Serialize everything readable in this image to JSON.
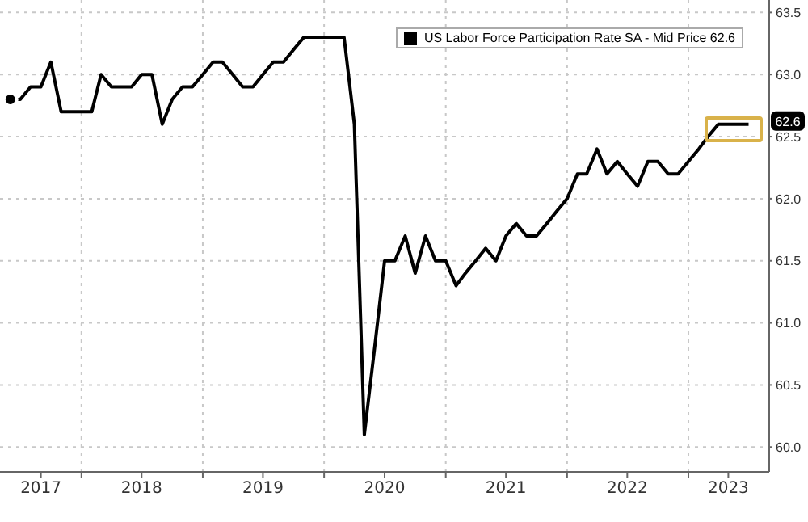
{
  "chart_data": {
    "type": "line",
    "x": [
      "2017-06",
      "2017-07",
      "2017-08",
      "2017-09",
      "2017-10",
      "2017-11",
      "2017-12",
      "2018-01",
      "2018-02",
      "2018-03",
      "2018-04",
      "2018-05",
      "2018-06",
      "2018-07",
      "2018-08",
      "2018-09",
      "2018-10",
      "2018-11",
      "2018-12",
      "2019-01",
      "2019-02",
      "2019-03",
      "2019-04",
      "2019-05",
      "2019-06",
      "2019-07",
      "2019-08",
      "2019-09",
      "2019-10",
      "2019-11",
      "2019-12",
      "2020-01",
      "2020-02",
      "2020-03",
      "2020-04",
      "2020-05",
      "2020-06",
      "2020-07",
      "2020-08",
      "2020-09",
      "2020-10",
      "2020-11",
      "2020-12",
      "2021-01",
      "2021-02",
      "2021-03",
      "2021-04",
      "2021-05",
      "2021-06",
      "2021-07",
      "2021-08",
      "2021-09",
      "2021-10",
      "2021-11",
      "2021-12",
      "2022-01",
      "2022-02",
      "2022-03",
      "2022-04",
      "2022-05",
      "2022-06",
      "2022-07",
      "2022-08",
      "2022-09",
      "2022-10",
      "2022-11",
      "2022-12",
      "2023-01",
      "2023-02",
      "2023-03",
      "2023-04",
      "2023-05",
      "2023-06",
      "2023-07"
    ],
    "series": [
      {
        "name": "US Labor Force Participation Rate SA - Mid Price 62.6",
        "color": "#000000",
        "values": [
          62.8,
          62.8,
          62.9,
          62.9,
          63.1,
          62.7,
          62.7,
          62.7,
          62.7,
          63.0,
          62.9,
          62.9,
          62.9,
          63.0,
          63.0,
          62.6,
          62.8,
          62.9,
          62.9,
          63.0,
          63.1,
          63.1,
          63.0,
          62.9,
          62.9,
          63.0,
          63.1,
          63.1,
          63.2,
          63.3,
          63.3,
          63.3,
          63.3,
          63.3,
          62.6,
          60.1,
          60.8,
          61.5,
          61.5,
          61.7,
          61.4,
          61.7,
          61.5,
          61.5,
          61.3,
          61.4,
          61.5,
          61.6,
          61.5,
          61.7,
          61.8,
          61.7,
          61.7,
          61.8,
          61.9,
          62.0,
          62.2,
          62.2,
          62.4,
          62.2,
          62.3,
          62.2,
          62.1,
          62.3,
          62.3,
          62.2,
          62.2,
          62.3,
          62.4,
          62.5,
          62.6,
          62.6,
          62.6,
          62.6
        ]
      }
    ],
    "xlim": [
      "2017-05",
      "2023-09"
    ],
    "xticks": [
      {
        "value": "2017-09",
        "label": "2017"
      },
      {
        "value": "2018-01",
        "label": null
      },
      {
        "value": "2018-07",
        "label": "2018"
      },
      {
        "value": "2019-01",
        "label": null
      },
      {
        "value": "2019-07",
        "label": "2019"
      },
      {
        "value": "2020-01",
        "label": null
      },
      {
        "value": "2020-07",
        "label": "2020"
      },
      {
        "value": "2021-01",
        "label": null
      },
      {
        "value": "2021-07",
        "label": "2021"
      },
      {
        "value": "2022-01",
        "label": null
      },
      {
        "value": "2022-07",
        "label": "2022"
      },
      {
        "value": "2023-01",
        "label": null
      },
      {
        "value": "2023-05",
        "label": "2023"
      }
    ],
    "ylim": [
      59.8,
      63.6
    ],
    "yticks": [
      {
        "value": 60,
        "label": "60.0"
      },
      60.5,
      {
        "value": 61,
        "label": "61.0"
      },
      61.5,
      {
        "value": 62,
        "label": "62.0"
      },
      62.5,
      {
        "value": 63,
        "label": "63.0"
      },
      63.5
    ],
    "annotations": [
      {
        "text": "62.6",
        "x": "2023-07",
        "y": 62.6
      }
    ],
    "grid": true,
    "legend": "top right",
    "marker": "none",
    "line_style": "solid"
  }
}
